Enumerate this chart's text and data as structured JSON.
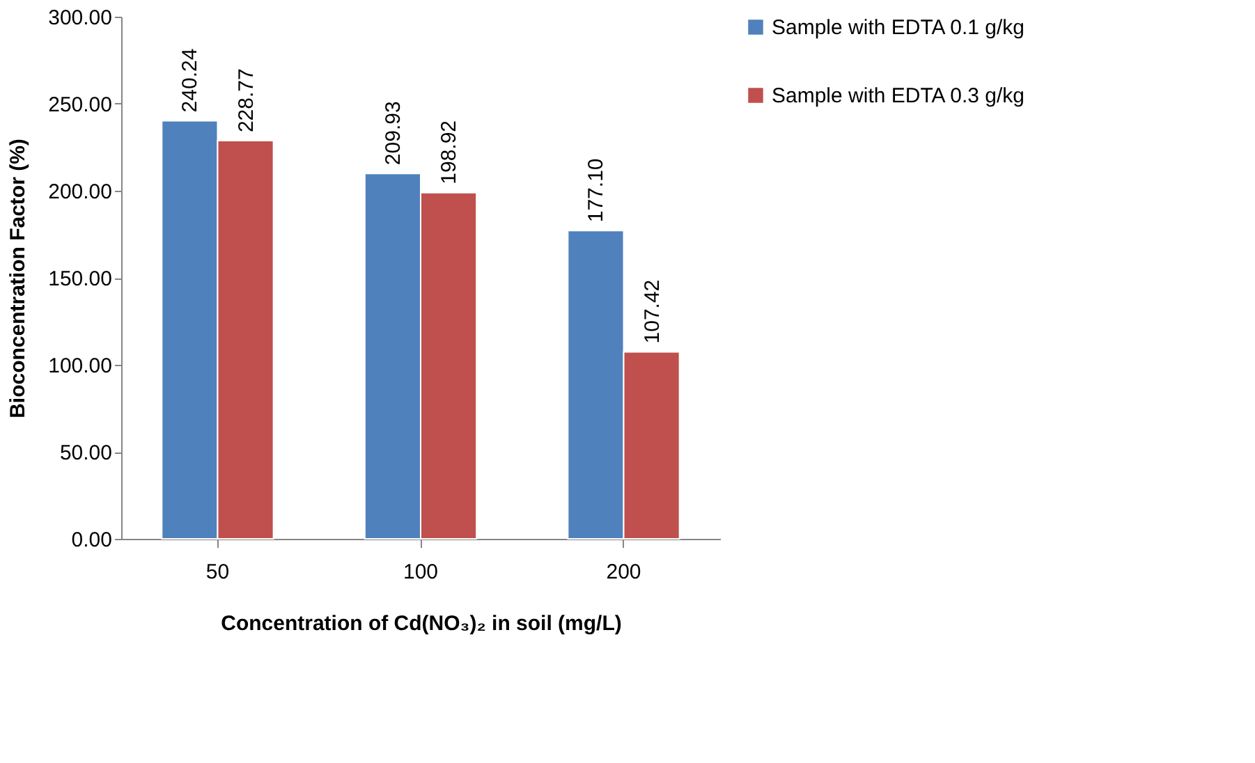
{
  "chart_data": {
    "type": "bar",
    "xlabel": "Concentration of Cd(NO₃)₂ in soil (mg/L)",
    "ylabel": "Bioconcentration Factor (%)",
    "categories": [
      "50",
      "100",
      "200"
    ],
    "series": [
      {
        "name": "Sample with EDTA 0.1 g/kg",
        "color": "#4f81bd",
        "values": [
          240.24,
          209.93,
          177.1
        ],
        "value_labels": [
          "240.24",
          "209.93",
          "177.10"
        ]
      },
      {
        "name": "Sample with EDTA 0.3 g/kg",
        "color": "#c0504d",
        "values": [
          228.77,
          198.92,
          107.42
        ],
        "value_labels": [
          "228.77",
          "198.92",
          "107.42"
        ]
      }
    ],
    "ylim": [
      0,
      300
    ],
    "yticks": [
      {
        "value": 0,
        "label": "0.00"
      },
      {
        "value": 50,
        "label": "50.00"
      },
      {
        "value": 100,
        "label": "100.00"
      },
      {
        "value": 150,
        "label": "150.00"
      },
      {
        "value": 200,
        "label": "200.00"
      },
      {
        "value": 250,
        "label": "250.00"
      },
      {
        "value": 300,
        "label": "300.00"
      }
    ],
    "grid": false,
    "legend": "right"
  }
}
